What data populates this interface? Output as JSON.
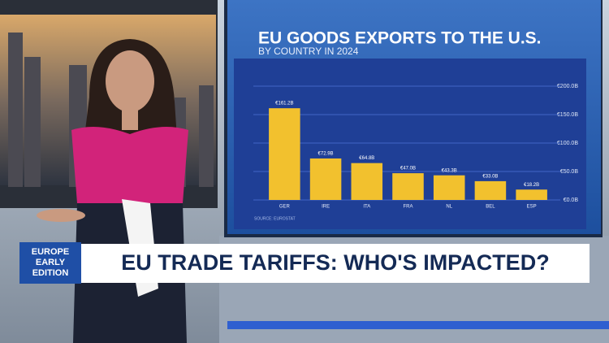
{
  "chart_data": {
    "type": "bar",
    "title": "EU GOODS EXPORTS TO THE U.S.",
    "subtitle": "BY COUNTRY IN 2024",
    "categories": [
      "GER",
      "IRE",
      "ITA",
      "FRA",
      "NL",
      "BEL",
      "ESP"
    ],
    "values": [
      161.2,
      72.9,
      64.8,
      47.0,
      43.3,
      33.0,
      18.2
    ],
    "value_labels": [
      "€161.2B",
      "€72.9B",
      "€64.8B",
      "€47.0B",
      "€43.3B",
      "€33.0B",
      "€18.2B"
    ],
    "color": "#f2c12e",
    "ylim": [
      0,
      200
    ],
    "yticks": [
      {
        "value": 0,
        "label": "€0.0B"
      },
      {
        "value": 50,
        "label": "€50.0B"
      },
      {
        "value": 100,
        "label": "€100.0B"
      },
      {
        "value": 150,
        "label": "€150.0B"
      },
      {
        "value": 200,
        "label": "€200.0B"
      }
    ],
    "grid": true,
    "source": "SOURCE: EUROSTAT"
  },
  "lower_third": {
    "badge": [
      "EUROPE",
      "EARLY",
      "EDITION"
    ],
    "headline": "EU TRADE TARIFFS: WHO'S IMPACTED?"
  }
}
